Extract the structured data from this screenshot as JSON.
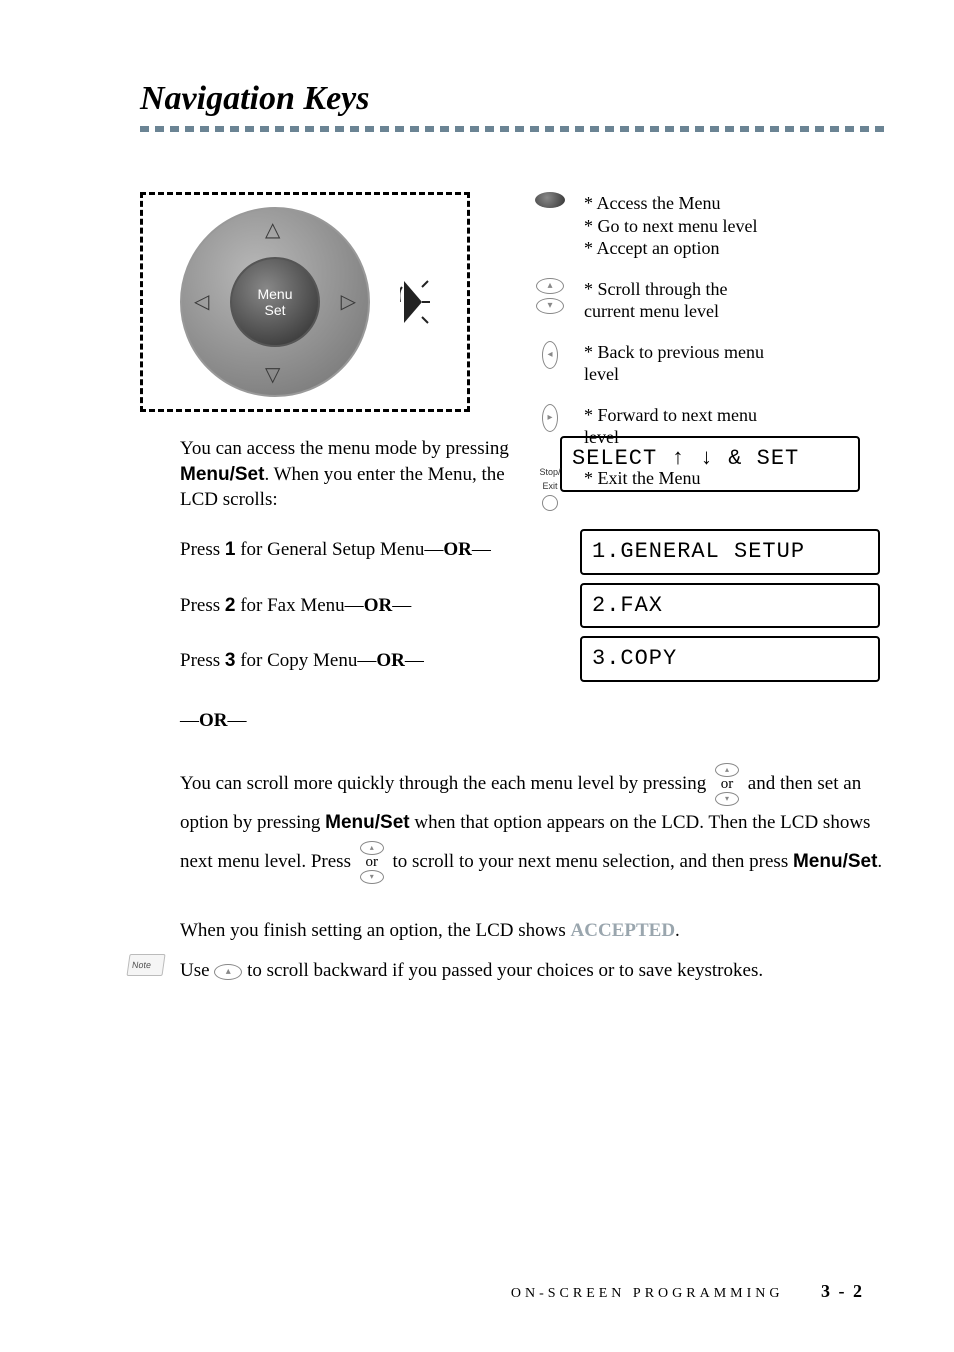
{
  "title": "Navigation Keys",
  "colors": {
    "underline_dash": "#6b8494",
    "background": "#ffffff",
    "text": "#000000",
    "accepted_gray": "#9aa6ae",
    "icon_gray": "#888888"
  },
  "title_underline": {
    "dash_count": 50
  },
  "nav_pad": {
    "center_top": "Menu",
    "center_bottom": "Set"
  },
  "legend": {
    "menu_set": {
      "l1": "*  Access the Menu",
      "l2": "*  Go to next menu level",
      "l3": "*  Accept an option"
    },
    "scroll": {
      "l1": "*  Scroll through the",
      "l2": "   current menu level"
    },
    "back": {
      "l1": "*  Back to previous menu",
      "l2": "   level"
    },
    "forward": {
      "l1": "*  Forward to next menu",
      "l2": "   level"
    },
    "exit": {
      "label_top": "Stop/",
      "label_bottom": "Exit",
      "l1": "*  Exit the Menu"
    }
  },
  "access_text": {
    "l1": "You can access the menu mode by pressing",
    "l2_prefix": "Menu/Set",
    "l2_rest": ". When you enter the Menu, the",
    "l3": "LCD scrolls:"
  },
  "lcd": {
    "select": "SELECT ↑ ↓ & SET",
    "m1": "1.GENERAL SETUP",
    "m2": "2.FAX",
    "m3": "3.COPY"
  },
  "menu_lines": {
    "p1_a": "Press ",
    "p1_b": "1",
    "p1_c": " for General Setup Menu—",
    "p1_or": "OR",
    "p1_d": "—",
    "p2_a": "Press ",
    "p2_b": "2",
    "p2_c": " for Fax Menu—",
    "p2_or": "OR",
    "p2_d": "—",
    "p3_a": "Press ",
    "p3_b": "3",
    "p3_c": " for Copy Menu—",
    "p3_or": "OR",
    "p3_d": "—"
  },
  "or_solo": {
    "dash": "—",
    "or": "OR"
  },
  "para1": {
    "t1": "You can scroll more quickly through the each menu level by pressing ",
    "or": "or",
    "t2": " and then set an option by pressing ",
    "menuset": "Menu/Set",
    "t3": " when that option appears on the LCD. Then the LCD shows next menu level. Press ",
    "t4": " to scroll to your next menu selection, and then press ",
    "menuset2": "Menu/Set",
    "t5": "."
  },
  "para2": {
    "t1": "When you finish setting an option, the LCD shows ",
    "accepted": "ACCEPTED",
    "t2": "."
  },
  "note": {
    "label": "Note",
    "t1": "Use  ",
    "t2": "  to scroll backward if you passed your choices or to save keystrokes."
  },
  "footer": {
    "section": "ON-SCREEN PROGRAMMING",
    "page": "3 - 2"
  }
}
